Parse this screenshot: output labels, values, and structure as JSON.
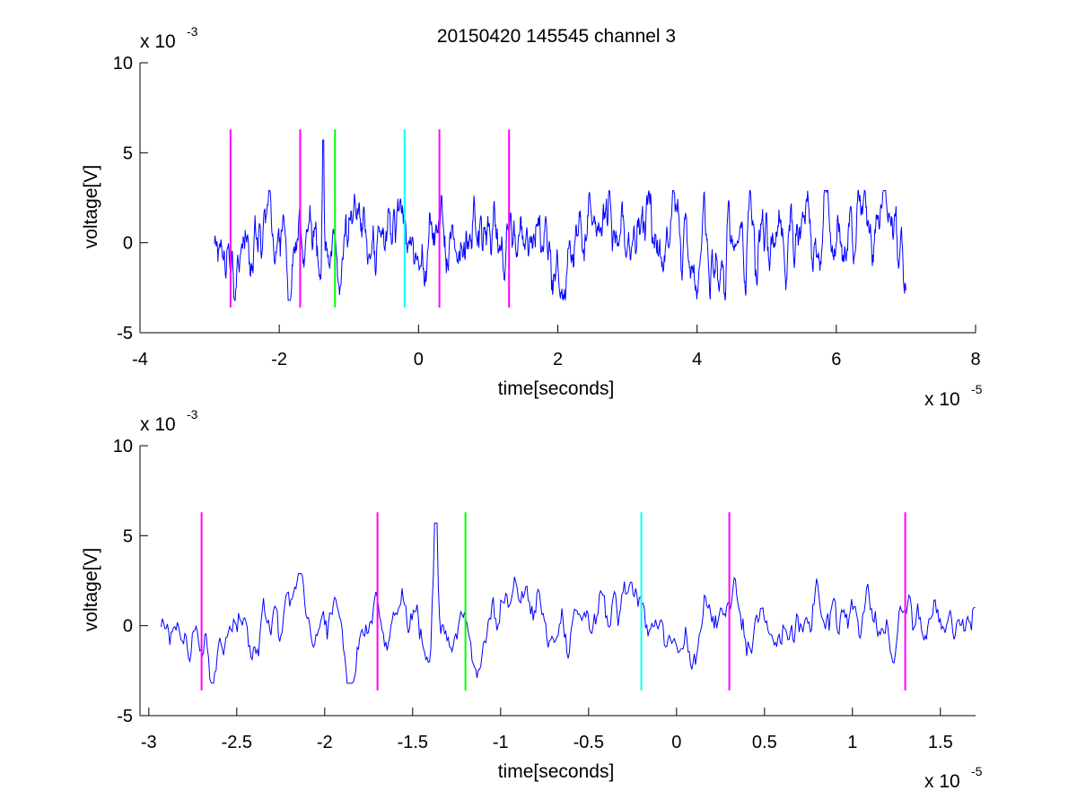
{
  "title": "20150420 145545 channel 3",
  "colors": {
    "signal": "#0000ff",
    "marker_magenta": "#ff00ff",
    "marker_green": "#00ff00",
    "marker_cyan": "#00ffff",
    "axes": "#000000",
    "background": "#ffffff"
  },
  "chart_data": [
    {
      "type": "line",
      "title": "20150420 145545 channel 3",
      "xlabel": "time[seconds]",
      "ylabel": "voltage[V]",
      "xlim": [
        -4e-05,
        8e-05
      ],
      "ylim": [
        -0.005,
        0.01
      ],
      "x_ticks": [
        -4,
        -2,
        0,
        2,
        4,
        6,
        8
      ],
      "y_ticks": [
        -5,
        0,
        5,
        10
      ],
      "x_tick_labels": [
        "-4",
        "-2",
        "0",
        "2",
        "4",
        "6",
        "8"
      ],
      "y_tick_labels": [
        "-5",
        "0",
        "5",
        "10"
      ],
      "x_exponent": {
        "base": "x 10",
        "power": "-5"
      },
      "y_exponent": {
        "base": "x 10",
        "power": "-3"
      },
      "grid": false,
      "series": [
        {
          "x_start": -2.93e-05,
          "x_end": 7e-05,
          "y_mean": 0,
          "y_min": -0.0032,
          "y_max": 0.0057,
          "color": "#0000ff"
        }
      ],
      "markers": [
        {
          "x": -2.7e-05,
          "y_from": -0.0036,
          "y_to": 0.0063,
          "color": "#ff00ff"
        },
        {
          "x": -1.7e-05,
          "y_from": -0.0036,
          "y_to": 0.0063,
          "color": "#ff00ff"
        },
        {
          "x": -1.2e-05,
          "y_from": -0.0036,
          "y_to": 0.0063,
          "color": "#00ff00"
        },
        {
          "x": -2e-06,
          "y_from": -0.0036,
          "y_to": 0.0063,
          "color": "#00ffff"
        },
        {
          "x": 3e-06,
          "y_from": -0.0036,
          "y_to": 0.0063,
          "color": "#ff00ff"
        },
        {
          "x": 1.3e-05,
          "y_from": -0.0036,
          "y_to": 0.0063,
          "color": "#ff00ff"
        }
      ]
    },
    {
      "type": "line",
      "title": "",
      "xlabel": "time[seconds]",
      "ylabel": "voltage[V]",
      "xlim": [
        -3.05e-05,
        1.7e-05
      ],
      "ylim": [
        -0.005,
        0.01
      ],
      "x_ticks": [
        -3,
        -2.5,
        -2,
        -1.5,
        -1,
        -0.5,
        0,
        0.5,
        1,
        1.5
      ],
      "y_ticks": [
        -5,
        0,
        5,
        10
      ],
      "x_tick_labels": [
        "-3",
        "-2.5",
        "-2",
        "-1.5",
        "-1",
        "-0.5",
        "0",
        "0.5",
        "1",
        "1.5"
      ],
      "y_tick_labels": [
        "-5",
        "0",
        "5",
        "10"
      ],
      "x_exponent": {
        "base": "x 10",
        "power": "-5"
      },
      "y_exponent": {
        "base": "x 10",
        "power": "-3"
      },
      "grid": false,
      "series": [
        {
          "x_start": -2.93e-05,
          "x_end": 1.7e-05,
          "y_mean": 0,
          "y_min": -0.0032,
          "y_max": 0.0057,
          "color": "#0000ff"
        }
      ],
      "markers": [
        {
          "x": -2.7e-05,
          "y_from": -0.0036,
          "y_to": 0.0063,
          "color": "#ff00ff"
        },
        {
          "x": -1.7e-05,
          "y_from": -0.0036,
          "y_to": 0.0063,
          "color": "#ff00ff"
        },
        {
          "x": -1.2e-05,
          "y_from": -0.0036,
          "y_to": 0.0063,
          "color": "#00ff00"
        },
        {
          "x": -2e-06,
          "y_from": -0.0036,
          "y_to": 0.0063,
          "color": "#00ffff"
        },
        {
          "x": 3e-06,
          "y_from": -0.0036,
          "y_to": 0.0063,
          "color": "#ff00ff"
        },
        {
          "x": 1.3e-05,
          "y_from": -0.0036,
          "y_to": 0.0063,
          "color": "#ff00ff"
        }
      ]
    }
  ]
}
